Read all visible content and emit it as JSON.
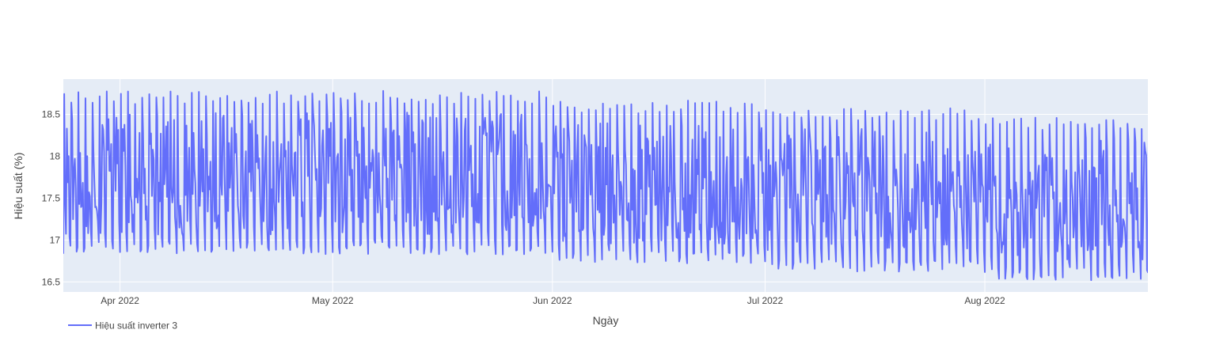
{
  "chart_data": {
    "type": "line",
    "title": "",
    "xlabel": "Ngày",
    "ylabel": "Hiệu suất (%)",
    "x_range": [
      "2022-03-24",
      "2022-08-24"
    ],
    "ylim": [
      16.38,
      18.92
    ],
    "x_ticks": [
      {
        "date": "2022-04-01",
        "label": "Apr 2022"
      },
      {
        "date": "2022-05-01",
        "label": "May 2022"
      },
      {
        "date": "2022-06-01",
        "label": "Jun 2022"
      },
      {
        "date": "2022-07-01",
        "label": "Jul 2022"
      },
      {
        "date": "2022-08-01",
        "label": "Aug 2022"
      }
    ],
    "y_ticks": [
      16.5,
      17,
      17.5,
      18,
      18.5
    ],
    "y_tick_labels": [
      "16.5",
      "17",
      "17.5",
      "18",
      "18.5"
    ],
    "grid": true,
    "legend_position": "bottom-left",
    "series": [
      {
        "name": "Hiệu suất inverter 3",
        "color": "#636efa",
        "periods": [
          {
            "start": "2022-03-24",
            "end": "2022-05-31",
            "low": 16.82,
            "high": 18.78
          },
          {
            "start": "2022-06-01",
            "end": "2022-06-30",
            "low": 16.72,
            "high": 18.67
          },
          {
            "start": "2022-07-01",
            "end": "2022-07-31",
            "low": 16.62,
            "high": 18.58
          },
          {
            "start": "2022-08-01",
            "end": "2022-08-24",
            "low": 16.52,
            "high": 18.47
          }
        ],
        "samples_per_day": 8
      }
    ]
  },
  "legend": {
    "items": [
      {
        "label": "Hiệu suất inverter 3",
        "color": "#636efa"
      }
    ]
  }
}
